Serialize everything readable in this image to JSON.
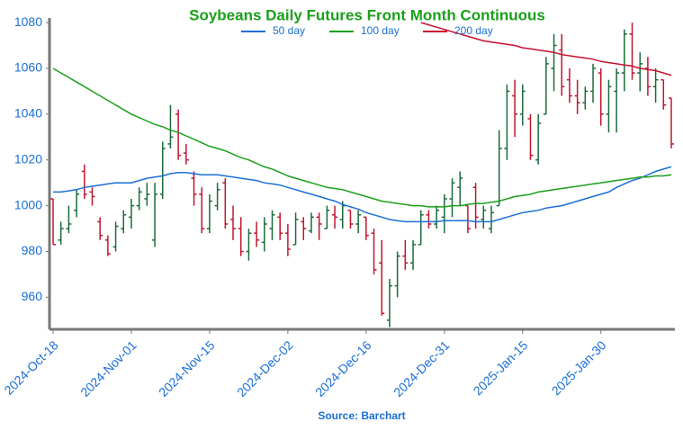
{
  "chart_data": {
    "type": "ohlc",
    "title": "Soybeans Daily Futures Front Month Continuous",
    "source": "Source: Barchart",
    "legend": "top",
    "categories": [
      "2024-Oct-18",
      null,
      null,
      null,
      null,
      null,
      null,
      null,
      null,
      null,
      "2024-Nov-01",
      null,
      null,
      null,
      null,
      null,
      null,
      null,
      null,
      null,
      "2024-Nov-15",
      null,
      null,
      null,
      null,
      null,
      null,
      null,
      null,
      null,
      "2024-Dec-02",
      null,
      null,
      null,
      null,
      null,
      null,
      null,
      null,
      null,
      "2024-Dec-16",
      null,
      null,
      null,
      null,
      null,
      null,
      null,
      null,
      null,
      "2024-Dec-31",
      null,
      null,
      null,
      null,
      null,
      null,
      null,
      null,
      null,
      "2025-Jan-15",
      null,
      null,
      null,
      null,
      null,
      null,
      null,
      null,
      null,
      "2025-Jan-30",
      null,
      null,
      null,
      null,
      null,
      null,
      null,
      null,
      null
    ],
    "ohlc": {
      "up_color": "#1b6b3a",
      "down_color": "#c0162c",
      "open": [
        1003,
        985,
        990,
        998,
        1015,
        1006,
        993,
        985,
        982,
        990,
        995,
        1000,
        1003,
        985,
        1005,
        1027,
        1040,
        1023,
        1012,
        1005,
        990,
        1000,
        1010,
        994,
        990,
        980,
        988,
        984,
        990,
        995,
        988,
        983,
        993,
        989,
        995,
        990,
        996,
        994,
        998,
        992,
        995,
        988,
        975,
        950,
        965,
        978,
        975,
        983,
        996,
        992,
        995,
        1003,
        1008,
        1000,
        1008,
        994,
        990,
        1000,
        1025,
        1048,
        1040,
        1038,
        1020,
        1040,
        1060,
        1068,
        1055,
        1048,
        1045,
        1050,
        1058,
        1040,
        1050,
        1058,
        1075,
        1058,
        1060,
        1052,
        1055,
        1047
      ],
      "high": [
        1003,
        993,
        1000,
        1007,
        1018,
        1008,
        995,
        987,
        993,
        998,
        1003,
        1008,
        1010,
        1010,
        1028,
        1044,
        1042,
        1027,
        1015,
        1008,
        1005,
        1010,
        1012,
        1000,
        995,
        990,
        993,
        995,
        998,
        997,
        992,
        997,
        995,
        997,
        997,
        1000,
        1000,
        1002,
        998,
        998,
        995,
        990,
        985,
        968,
        980,
        985,
        985,
        998,
        998,
        1000,
        1005,
        1012,
        1015,
        1000,
        1010,
        1000,
        1000,
        1033,
        1053,
        1055,
        1053,
        1040,
        1040,
        1065,
        1075,
        1075,
        1060,
        1055,
        1052,
        1062,
        1060,
        1055,
        1060,
        1077,
        1080,
        1067,
        1065,
        1060,
        1055,
        1047
      ],
      "low": [
        983,
        983,
        988,
        995,
        1003,
        1000,
        985,
        978,
        980,
        988,
        990,
        998,
        1000,
        982,
        1003,
        1025,
        1020,
        1018,
        1000,
        988,
        988,
        998,
        990,
        985,
        978,
        976,
        982,
        980,
        985,
        985,
        978,
        983,
        985,
        988,
        985,
        990,
        990,
        990,
        990,
        988,
        985,
        970,
        952,
        947,
        960,
        972,
        972,
        983,
        990,
        990,
        988,
        995,
        1000,
        988,
        990,
        990,
        988,
        1000,
        1020,
        1030,
        1035,
        1020,
        1018,
        1040,
        1050,
        1048,
        1045,
        1040,
        1042,
        1045,
        1035,
        1032,
        1032,
        1050,
        1055,
        1050,
        1048,
        1045,
        1042,
        1025
      ],
      "close": [
        983,
        990,
        992,
        1005,
        1005,
        1004,
        987,
        979,
        991,
        996,
        1000,
        1006,
        1005,
        1005,
        1025,
        1030,
        1022,
        1020,
        1005,
        990,
        1002,
        1007,
        992,
        990,
        980,
        988,
        985,
        992,
        996,
        988,
        981,
        994,
        990,
        995,
        992,
        998,
        995,
        1000,
        992,
        996,
        987,
        972,
        953,
        965,
        978,
        975,
        983,
        996,
        992,
        998,
        1003,
        1010,
        1012,
        990,
        995,
        998,
        997,
        1025,
        1050,
        1040,
        1050,
        1022,
        1036,
        1062,
        1070,
        1052,
        1048,
        1045,
        1050,
        1060,
        1040,
        1052,
        1058,
        1075,
        1058,
        1062,
        1052,
        1055,
        1044,
        1027
      ]
    },
    "series": [
      {
        "name": "50 day",
        "color": "#1a6fd6",
        "values": [
          1006,
          1006,
          1006.5,
          1007,
          1008,
          1008.5,
          1009,
          1009.5,
          1010,
          1010,
          1010,
          1011,
          1012,
          1012.5,
          1013,
          1014,
          1014.5,
          1014.5,
          1014,
          1013.5,
          1013.5,
          1013.5,
          1013,
          1012.5,
          1012,
          1011.5,
          1011,
          1010,
          1009.5,
          1009,
          1008,
          1007,
          1006,
          1005,
          1004,
          1003,
          1002,
          1000.5,
          999.5,
          998.5,
          997,
          996,
          995,
          994,
          993.5,
          993,
          993,
          993,
          993,
          993,
          993.5,
          993.5,
          993.5,
          993.5,
          993,
          993,
          993,
          994,
          995,
          996,
          997,
          997.5,
          998,
          999,
          999.5,
          1000,
          1001,
          1002,
          1003,
          1004,
          1005,
          1006,
          1008,
          1009.5,
          1011,
          1012,
          1013.5,
          1015,
          1016,
          1017
        ]
      },
      {
        "name": "100 day",
        "color": "#1aa01a",
        "values": [
          1060,
          1058,
          1056,
          1054,
          1052,
          1050,
          1048,
          1046,
          1044,
          1042,
          1040,
          1038.5,
          1037,
          1035.5,
          1034.5,
          1033,
          1032,
          1030.5,
          1029,
          1027.5,
          1026,
          1025,
          1024,
          1022.5,
          1021,
          1020,
          1018.5,
          1017,
          1016,
          1014.5,
          1013,
          1012,
          1011,
          1010,
          1009,
          1008,
          1007.5,
          1007,
          1006,
          1005,
          1004,
          1003,
          1002,
          1001.5,
          1001,
          1000.5,
          1000,
          1000,
          999.5,
          999.5,
          999.5,
          1000,
          1000,
          1000.5,
          1001,
          1001,
          1001.5,
          1002,
          1003,
          1004,
          1004.5,
          1005,
          1006,
          1006.5,
          1007,
          1007.5,
          1008,
          1008.5,
          1009,
          1009.5,
          1010,
          1010.5,
          1011,
          1011.5,
          1012,
          1012.5,
          1012.5,
          1013,
          1013,
          1013.5
        ]
      },
      {
        "name": "200 day",
        "color": "#c8102e",
        "values": [
          null,
          null,
          null,
          null,
          null,
          null,
          null,
          null,
          null,
          null,
          null,
          null,
          null,
          null,
          null,
          null,
          null,
          null,
          null,
          null,
          null,
          null,
          null,
          null,
          null,
          null,
          null,
          null,
          null,
          null,
          null,
          null,
          null,
          null,
          null,
          null,
          null,
          null,
          null,
          null,
          null,
          null,
          null,
          null,
          null,
          null,
          null,
          1080,
          1079,
          1078,
          1077,
          1076,
          1075,
          1074,
          1073,
          1072,
          1071.5,
          1071,
          1070.5,
          1070,
          1069,
          1068.5,
          1068,
          1067.5,
          1067,
          1066,
          1065.5,
          1065,
          1064.5,
          1064,
          1063,
          1062.5,
          1062,
          1061.5,
          1061,
          1060,
          1059.5,
          1059,
          1058,
          1057
        ]
      }
    ],
    "ylim": [
      946,
      1082
    ],
    "yticks": [
      960,
      980,
      1000,
      1020,
      1040,
      1060,
      1080
    ]
  }
}
